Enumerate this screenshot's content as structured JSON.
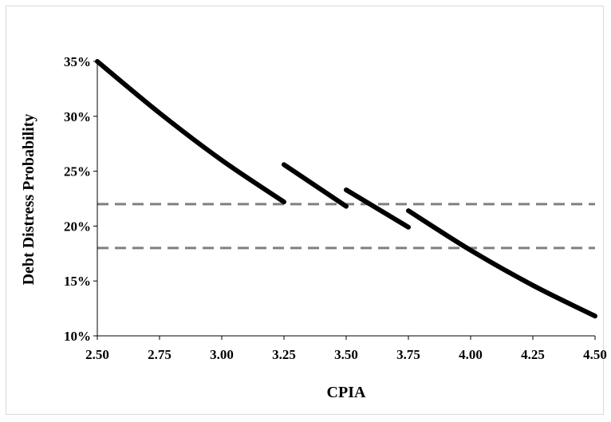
{
  "chart_data": {
    "type": "line",
    "title": "",
    "xlabel": "CPIA",
    "ylabel": "Debt Distress Probability",
    "xlim": [
      2.5,
      4.5
    ],
    "ylim": [
      10,
      35
    ],
    "x_ticks": [
      "2.50",
      "2.75",
      "3.00",
      "3.25",
      "3.50",
      "3.75",
      "4.00",
      "4.25",
      "4.50"
    ],
    "y_ticks": [
      "10%",
      "15%",
      "20%",
      "25%",
      "30%",
      "35%"
    ],
    "grid": false,
    "legend": "none",
    "colors": {
      "series": "#000000",
      "thresholds": "#808080"
    },
    "series": [
      {
        "segments": [
          {
            "x": [
              2.5,
              2.75,
              3.0,
              3.25
            ],
            "y": [
              35.0,
              30.3,
              26.0,
              22.2
            ]
          },
          {
            "x": [
              3.25,
              3.5
            ],
            "y": [
              25.6,
              21.8
            ]
          },
          {
            "x": [
              3.5,
              3.75
            ],
            "y": [
              23.3,
              19.9
            ]
          },
          {
            "x": [
              3.75,
              4.0,
              4.25,
              4.5
            ],
            "y": [
              21.4,
              17.8,
              14.6,
              11.8
            ]
          }
        ]
      }
    ],
    "reference_lines": [
      {
        "y": 22.0,
        "style": "dashed"
      },
      {
        "y": 18.0,
        "style": "dashed"
      }
    ]
  }
}
